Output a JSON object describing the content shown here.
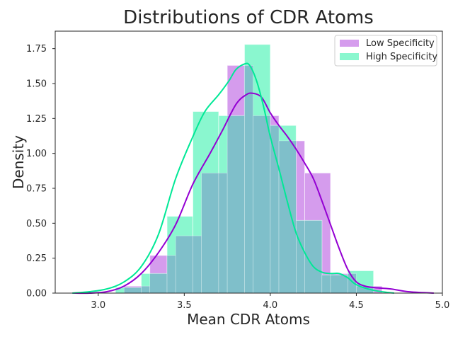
{
  "chart_data": {
    "type": "bar",
    "title": "Distributions of CDR Atoms",
    "xlabel": "Mean CDR Atoms",
    "ylabel": "Density",
    "xlim": [
      2.75,
      5.0
    ],
    "ylim": [
      0,
      1.875
    ],
    "xticks": [
      "3.0",
      "3.5",
      "4.0",
      "4.5",
      "5.0"
    ],
    "yticks": [
      "0.00",
      "0.25",
      "0.50",
      "0.75",
      "1.00",
      "1.25",
      "1.50",
      "1.75"
    ],
    "grid": false,
    "legend_position": "top-right",
    "series": [
      {
        "name": "Low Specificity",
        "color": "#9400D3",
        "fill_color": "#d59ced",
        "bins": [
          {
            "x0": 3.15,
            "x1": 3.3,
            "density": 0.05
          },
          {
            "x0": 3.3,
            "x1": 3.45,
            "density": 0.27
          },
          {
            "x0": 3.45,
            "x1": 3.6,
            "density": 0.41
          },
          {
            "x0": 3.6,
            "x1": 3.75,
            "density": 0.86
          },
          {
            "x0": 3.75,
            "x1": 3.9,
            "density": 1.63
          },
          {
            "x0": 3.9,
            "x1": 4.05,
            "density": 1.27
          },
          {
            "x0": 4.05,
            "x1": 4.2,
            "density": 1.09
          },
          {
            "x0": 4.2,
            "x1": 4.35,
            "density": 0.86
          },
          {
            "x0": 4.35,
            "x1": 4.5,
            "density": 0.14
          },
          {
            "x0": 4.5,
            "x1": 4.65,
            "density": 0.05
          }
        ],
        "kde": {
          "x": [
            2.85,
            2.95,
            3.05,
            3.15,
            3.25,
            3.35,
            3.45,
            3.55,
            3.65,
            3.72,
            3.8,
            3.86,
            3.9,
            3.95,
            4.0,
            4.05,
            4.1,
            4.15,
            4.2,
            4.25,
            4.3,
            4.35,
            4.4,
            4.45,
            4.5,
            4.55,
            4.6,
            4.7,
            4.8,
            4.95
          ],
          "y": [
            0.0,
            0.0,
            0.01,
            0.05,
            0.14,
            0.29,
            0.49,
            0.78,
            1.0,
            1.16,
            1.35,
            1.42,
            1.43,
            1.4,
            1.29,
            1.2,
            1.12,
            1.03,
            0.93,
            0.82,
            0.66,
            0.49,
            0.32,
            0.17,
            0.08,
            0.05,
            0.04,
            0.03,
            0.01,
            0.0
          ]
        }
      },
      {
        "name": "High Specificity",
        "color": "#00E896",
        "fill_color": "#8af7cf",
        "bins": [
          {
            "x0": 3.1,
            "x1": 3.25,
            "density": 0.04
          },
          {
            "x0": 3.25,
            "x1": 3.4,
            "density": 0.14
          },
          {
            "x0": 3.4,
            "x1": 3.55,
            "density": 0.55
          },
          {
            "x0": 3.55,
            "x1": 3.7,
            "density": 1.3
          },
          {
            "x0": 3.7,
            "x1": 3.85,
            "density": 1.27
          },
          {
            "x0": 3.85,
            "x1": 4.0,
            "density": 1.78
          },
          {
            "x0": 4.0,
            "x1": 4.15,
            "density": 1.2
          },
          {
            "x0": 4.15,
            "x1": 4.3,
            "density": 0.52
          },
          {
            "x0": 4.3,
            "x1": 4.45,
            "density": 0.13
          },
          {
            "x0": 4.45,
            "x1": 4.6,
            "density": 0.16
          }
        ],
        "kde": {
          "x": [
            2.85,
            2.95,
            3.05,
            3.15,
            3.25,
            3.35,
            3.45,
            3.55,
            3.62,
            3.7,
            3.76,
            3.8,
            3.85,
            3.88,
            3.92,
            3.96,
            4.0,
            4.05,
            4.1,
            4.15,
            4.2,
            4.25,
            4.3,
            4.35,
            4.4,
            4.45,
            4.5,
            4.6,
            4.72
          ],
          "y": [
            0.0,
            0.01,
            0.03,
            0.08,
            0.19,
            0.42,
            0.82,
            1.12,
            1.3,
            1.42,
            1.52,
            1.6,
            1.64,
            1.63,
            1.52,
            1.34,
            1.12,
            0.89,
            0.65,
            0.43,
            0.29,
            0.19,
            0.15,
            0.14,
            0.14,
            0.11,
            0.06,
            0.02,
            0.0
          ]
        }
      }
    ],
    "overlap_color": "#7fbfca"
  }
}
